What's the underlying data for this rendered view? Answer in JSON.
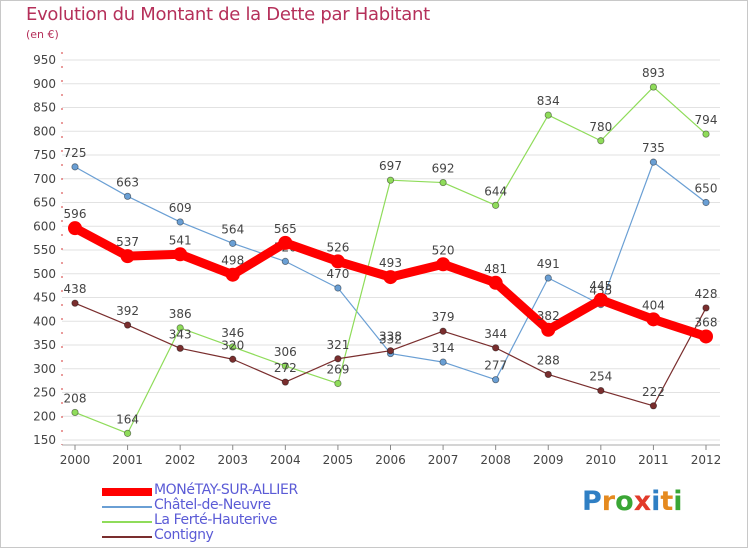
{
  "header": {
    "title": "Evolution du Montant de la Dette par Habitant",
    "subtitle": "(en €)"
  },
  "logo": {
    "text": "Proxiti",
    "letter_colors": [
      "#2f7fc4",
      "#e58a1f",
      "#3aa635",
      "#e23a2a",
      "#2f7fc4",
      "#e58a1f",
      "#3aa635"
    ]
  },
  "colors": {
    "title": "#b5305a",
    "grid": "#e2e2e2",
    "label": "#444444",
    "legend_text": "#5b5bd6"
  },
  "chart_data": {
    "type": "line",
    "title": "Evolution du Montant de la Dette par Habitant",
    "ylabel": "(en €)",
    "xlabel": "",
    "ylim": [
      150,
      950
    ],
    "yticks": [
      150,
      200,
      250,
      300,
      350,
      400,
      450,
      500,
      550,
      600,
      650,
      700,
      750,
      800,
      850,
      900,
      950
    ],
    "x": [
      "2000",
      "2001",
      "2002",
      "2003",
      "2004",
      "2005",
      "2006",
      "2007",
      "2008",
      "2009",
      "2010",
      "2011",
      "2012"
    ],
    "grid": "horizontal",
    "legend_position": "bottom-left",
    "series": [
      {
        "name": "MONéTAY-SUR-ALLIER",
        "color": "#ff0000",
        "highlight": true,
        "values": [
          596,
          537,
          541,
          498,
          565,
          526,
          493,
          520,
          481,
          382,
          445,
          404,
          368
        ]
      },
      {
        "name": "Châtel-de-Neuvre",
        "color": "#6a9fd4",
        "values": [
          725,
          663,
          609,
          564,
          526,
          470,
          332,
          314,
          277,
          491,
          435,
          735,
          650
        ]
      },
      {
        "name": "La Ferté-Hauterive",
        "color": "#8fdc5a",
        "values": [
          208,
          164,
          386,
          346,
          306,
          269,
          697,
          692,
          644,
          834,
          780,
          893,
          794
        ]
      },
      {
        "name": "Contigny",
        "color": "#7a2e2e",
        "values": [
          438,
          392,
          343,
          320,
          272,
          321,
          338,
          379,
          344,
          288,
          254,
          222,
          428
        ]
      }
    ]
  }
}
